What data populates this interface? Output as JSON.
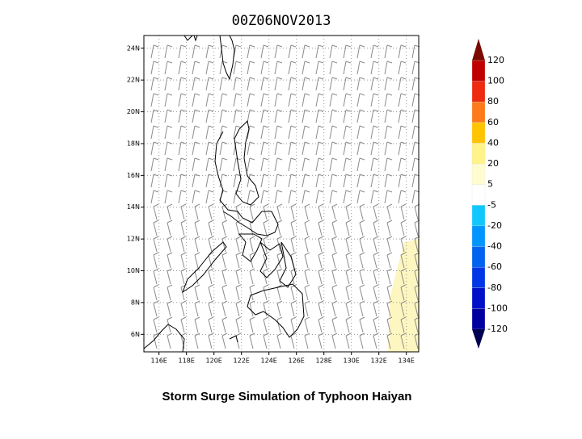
{
  "chart_data": {
    "type": "map",
    "title": "00Z06NOV2013",
    "caption": "Storm Surge Simulation of Typhoon Haiyan",
    "xlim": [
      114.9,
      134.9
    ],
    "ylim": [
      4.9,
      24.8
    ],
    "xticks": [
      {
        "value": 116,
        "label": "116E"
      },
      {
        "value": 118,
        "label": "118E"
      },
      {
        "value": 120,
        "label": "120E"
      },
      {
        "value": 122,
        "label": "122E"
      },
      {
        "value": 124,
        "label": "124E"
      },
      {
        "value": 126,
        "label": "126E"
      },
      {
        "value": 128,
        "label": "128E"
      },
      {
        "value": 130,
        "label": "130E"
      },
      {
        "value": 132,
        "label": "132E"
      },
      {
        "value": 134,
        "label": "134E"
      }
    ],
    "yticks": [
      {
        "value": 6,
        "label": "6N"
      },
      {
        "value": 8,
        "label": "8N"
      },
      {
        "value": 10,
        "label": "10N"
      },
      {
        "value": 12,
        "label": "12N"
      },
      {
        "value": 14,
        "label": "14N"
      },
      {
        "value": 16,
        "label": "16N"
      },
      {
        "value": 18,
        "label": "18N"
      },
      {
        "value": 20,
        "label": "20N"
      },
      {
        "value": 22,
        "label": "22N"
      },
      {
        "value": 24,
        "label": "24N"
      }
    ],
    "grid": true,
    "colorbar": {
      "levels": [
        120,
        100,
        80,
        60,
        40,
        20,
        5,
        -5,
        -20,
        -40,
        -60,
        -80,
        -100,
        -120
      ],
      "colors": [
        "#7a0a00",
        "#c00000",
        "#ee2a10",
        "#ff7a1a",
        "#ffc400",
        "#fff38a",
        "#fffcd0",
        "#ffffff",
        "#10c8ff",
        "#0096ff",
        "#0064f0",
        "#0036e6",
        "#0010c8",
        "#0000a0",
        "#000050"
      ]
    }
  }
}
